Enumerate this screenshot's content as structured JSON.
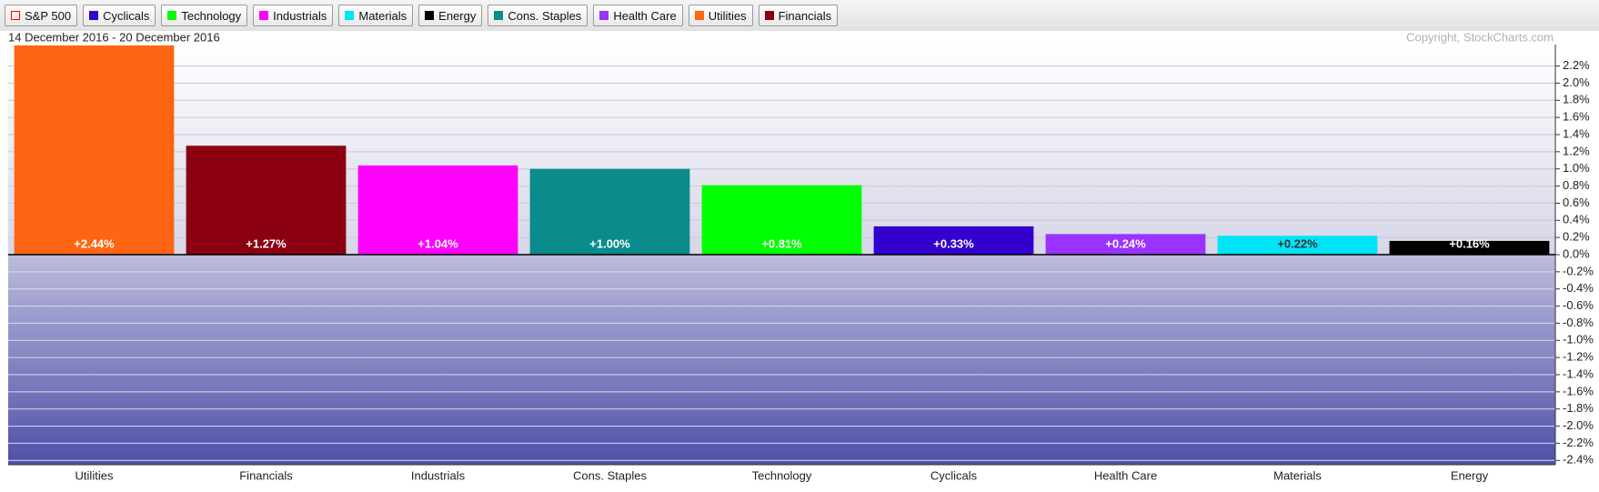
{
  "chart_data": {
    "type": "bar",
    "subtitle": "14 December 2016 - 20 December 2016",
    "copyright": "Copyright, StockCharts.com",
    "legend": [
      {
        "name": "S&P 500",
        "color": "#ff0000",
        "marker": "outline"
      },
      {
        "name": "Cyclicals",
        "color": "#3300cc"
      },
      {
        "name": "Technology",
        "color": "#00ff00"
      },
      {
        "name": "Industrials",
        "color": "#ff00ff"
      },
      {
        "name": "Materials",
        "color": "#00e5f5"
      },
      {
        "name": "Energy",
        "color": "#000000"
      },
      {
        "name": "Cons. Staples",
        "color": "#0a8c8c"
      },
      {
        "name": "Health Care",
        "color": "#9933ff"
      },
      {
        "name": "Utilities",
        "color": "#ff6614"
      },
      {
        "name": "Financials",
        "color": "#8b0010"
      }
    ],
    "categories": [
      "Utilities",
      "Financials",
      "Industrials",
      "Cons. Staples",
      "Technology",
      "Cyclicals",
      "Health Care",
      "Materials",
      "Energy"
    ],
    "values": [
      2.44,
      1.27,
      1.04,
      1.0,
      0.81,
      0.33,
      0.24,
      0.22,
      0.16
    ],
    "value_labels": [
      "+2.44%",
      "+1.27%",
      "+1.04%",
      "+1.00%",
      "+0.81%",
      "+0.33%",
      "+0.24%",
      "+0.22%",
      "+0.16%"
    ],
    "colors": [
      "#ff6614",
      "#8b0010",
      "#ff00ff",
      "#0a8c8c",
      "#00ff00",
      "#3300cc",
      "#9933ff",
      "#00e5f5",
      "#000000"
    ],
    "ylim": [
      -2.45,
      2.45
    ],
    "yticks": [
      {
        "value": 2.2,
        "label": "2.2%"
      },
      {
        "value": 2.0,
        "label": "2.0%"
      },
      {
        "value": 1.8,
        "label": "1.8%"
      },
      {
        "value": 1.6,
        "label": "1.6%"
      },
      {
        "value": 1.4,
        "label": "1.4%"
      },
      {
        "value": 1.2,
        "label": "1.2%"
      },
      {
        "value": 1.0,
        "label": "1.0%"
      },
      {
        "value": 0.8,
        "label": "0.8%"
      },
      {
        "value": 0.6,
        "label": "0.6%"
      },
      {
        "value": 0.4,
        "label": "0.4%"
      },
      {
        "value": 0.2,
        "label": "0.2%"
      },
      {
        "value": 0.0,
        "label": "0.0%"
      },
      {
        "value": -0.2,
        "label": "-0.2%"
      },
      {
        "value": -0.4,
        "label": "-0.4%"
      },
      {
        "value": -0.6,
        "label": "-0.6%"
      },
      {
        "value": -0.8,
        "label": "-0.8%"
      },
      {
        "value": -1.0,
        "label": "-1.0%"
      },
      {
        "value": -1.2,
        "label": "-1.2%"
      },
      {
        "value": -1.4,
        "label": "-1.4%"
      },
      {
        "value": -1.6,
        "label": "-1.6%"
      },
      {
        "value": -1.8,
        "label": "-1.8%"
      },
      {
        "value": -2.0,
        "label": "-2.0%"
      },
      {
        "value": -2.2,
        "label": "-2.2%"
      },
      {
        "value": -2.4,
        "label": "-2.4%"
      }
    ],
    "grid": true
  }
}
